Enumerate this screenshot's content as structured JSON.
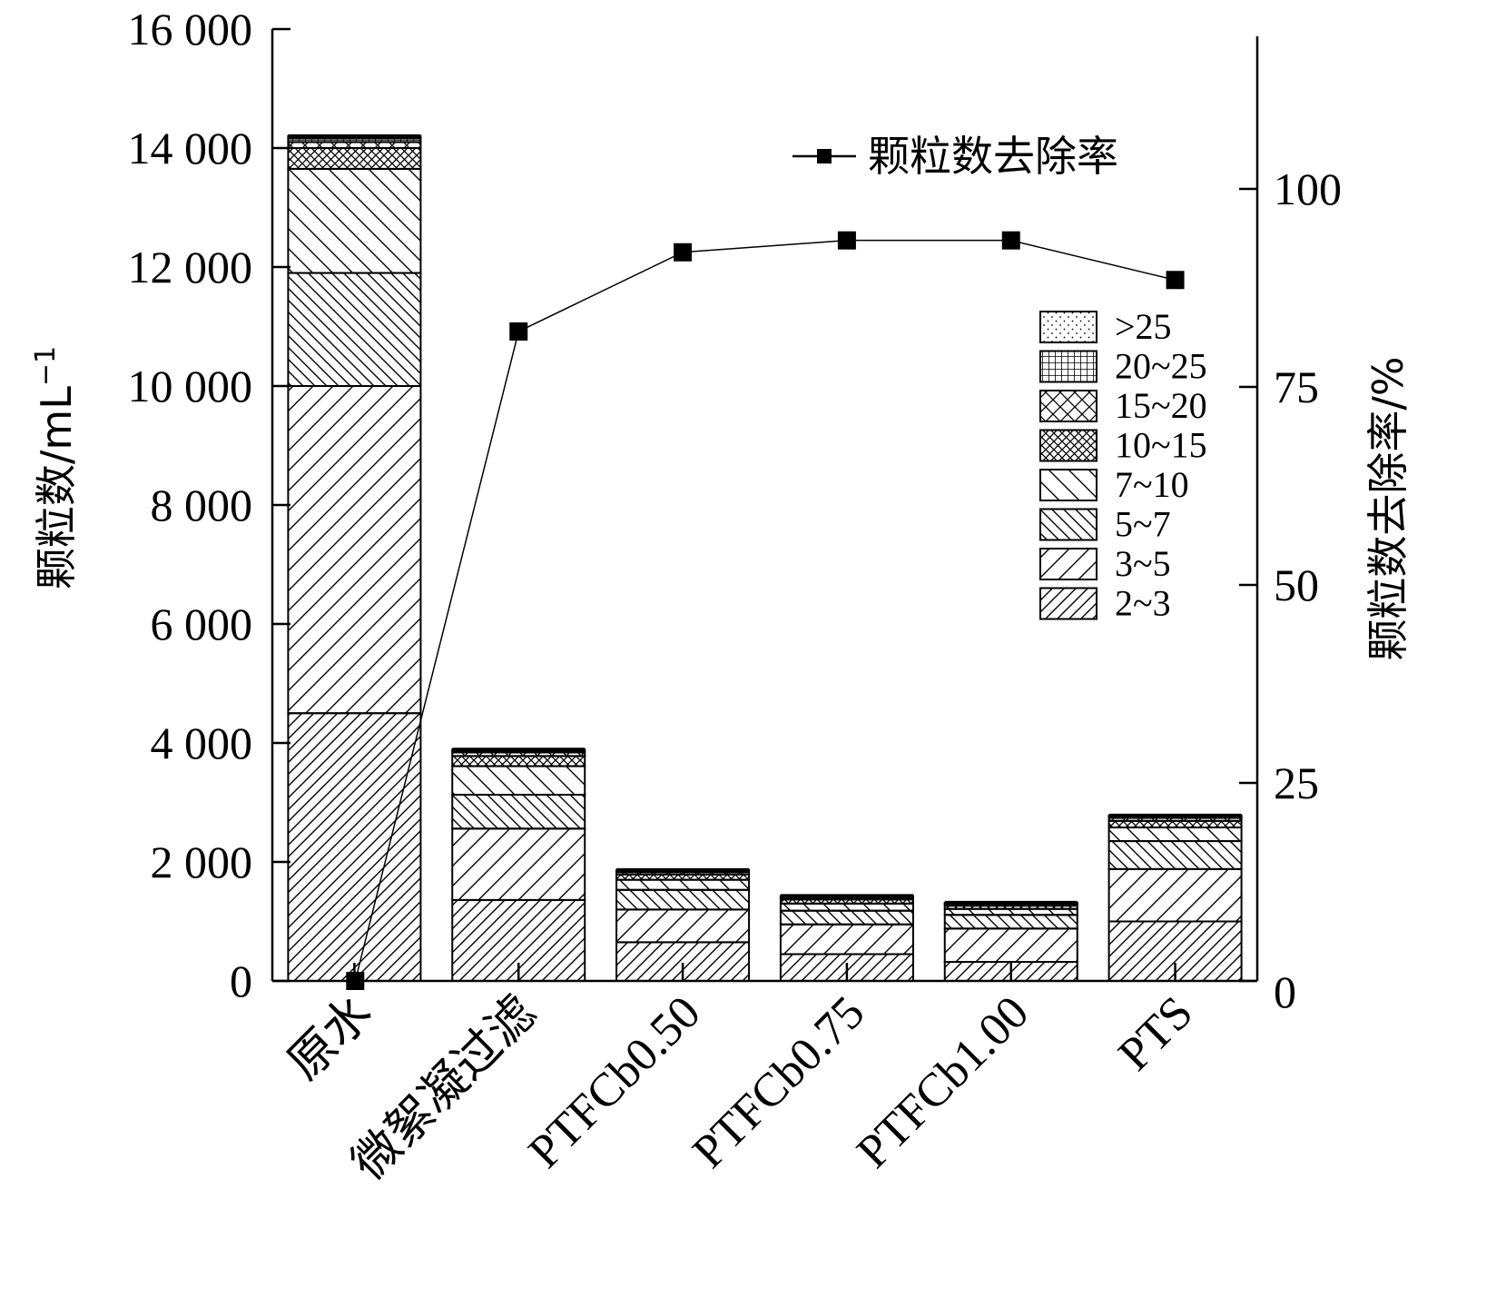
{
  "chart_data": {
    "type": "bar",
    "stacked": true,
    "categories": [
      "原水",
      "微絮凝过滤",
      "PTFCb0.50",
      "PTFCb0.75",
      "PTFCb1.00",
      "PTS"
    ],
    "series": [
      {
        "name": "2~3",
        "pattern": "diag-right-dense",
        "values": [
          4500,
          1360,
          650,
          450,
          320,
          1000
        ]
      },
      {
        "name": "3~5",
        "pattern": "diag-right",
        "values": [
          5500,
          1200,
          550,
          500,
          560,
          880
        ]
      },
      {
        "name": "5~7",
        "pattern": "diag-left-dense",
        "values": [
          1900,
          570,
          330,
          230,
          230,
          470
        ]
      },
      {
        "name": "7~10",
        "pattern": "diag-left",
        "values": [
          1750,
          480,
          170,
          120,
          100,
          230
        ]
      },
      {
        "name": "10~15",
        "pattern": "cross-dense",
        "values": [
          350,
          170,
          90,
          70,
          55,
          110
        ]
      },
      {
        "name": "15~20",
        "pattern": "cross",
        "values": [
          100,
          60,
          40,
          30,
          25,
          50
        ]
      },
      {
        "name": "20~25",
        "pattern": "grid",
        "values": [
          60,
          30,
          20,
          18,
          14,
          25
        ]
      },
      {
        "name": ">25",
        "pattern": "dots",
        "values": [
          40,
          20,
          15,
          12,
          10,
          15
        ]
      }
    ],
    "line_series": {
      "name": "颗粒数去除率",
      "axis": "right",
      "values": [
        0,
        82,
        92,
        93.5,
        93.5,
        88.5
      ]
    },
    "y_left": {
      "label": "颗粒数/mL",
      "label_sup": "−1",
      "range": [
        0,
        16000
      ],
      "ticks": [
        0,
        2000,
        4000,
        6000,
        8000,
        10000,
        12000,
        14000,
        16000
      ],
      "tick_labels": [
        "0",
        "2 000",
        "4 000",
        "6 000",
        "8 000",
        "10 000",
        "12 000",
        "14 000",
        "16 000"
      ]
    },
    "y_right": {
      "label": "颗粒数去除率/%",
      "range": [
        0,
        120
      ],
      "ticks": [
        0,
        25,
        50,
        75,
        100
      ],
      "tick_labels": [
        "0",
        "25",
        "50",
        "75",
        "100"
      ]
    },
    "legend_placement": "right",
    "line_legend_placement": "top-right",
    "grid": false
  }
}
